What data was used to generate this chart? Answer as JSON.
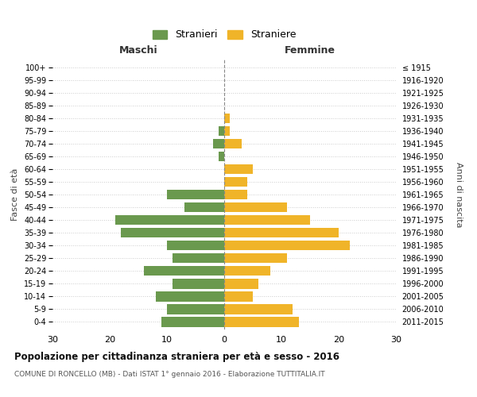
{
  "age_groups": [
    "0-4",
    "5-9",
    "10-14",
    "15-19",
    "20-24",
    "25-29",
    "30-34",
    "35-39",
    "40-44",
    "45-49",
    "50-54",
    "55-59",
    "60-64",
    "65-69",
    "70-74",
    "75-79",
    "80-84",
    "85-89",
    "90-94",
    "95-99",
    "100+"
  ],
  "birth_years": [
    "2011-2015",
    "2006-2010",
    "2001-2005",
    "1996-2000",
    "1991-1995",
    "1986-1990",
    "1981-1985",
    "1976-1980",
    "1971-1975",
    "1966-1970",
    "1961-1965",
    "1956-1960",
    "1951-1955",
    "1946-1950",
    "1941-1945",
    "1936-1940",
    "1931-1935",
    "1926-1930",
    "1921-1925",
    "1916-1920",
    "≤ 1915"
  ],
  "maschi": [
    11,
    10,
    12,
    9,
    14,
    9,
    10,
    18,
    19,
    7,
    10,
    0,
    0,
    1,
    2,
    1,
    0,
    0,
    0,
    0,
    0
  ],
  "femmine": [
    13,
    12,
    5,
    6,
    8,
    11,
    22,
    20,
    15,
    11,
    4,
    4,
    5,
    0,
    3,
    1,
    1,
    0,
    0,
    0,
    0
  ],
  "maschi_color": "#6a994e",
  "femmine_color": "#f0b429",
  "background_color": "#ffffff",
  "grid_color": "#cccccc",
  "title": "Popolazione per cittadinanza straniera per età e sesso - 2016",
  "subtitle": "COMUNE DI RONCELLO (MB) - Dati ISTAT 1° gennaio 2016 - Elaborazione TUTTITALIA.IT",
  "xlabel_left": "Maschi",
  "xlabel_right": "Femmine",
  "ylabel_left": "Fasce di età",
  "ylabel_right": "Anni di nascita",
  "legend_maschi": "Stranieri",
  "legend_femmine": "Straniere",
  "xlim": 30
}
